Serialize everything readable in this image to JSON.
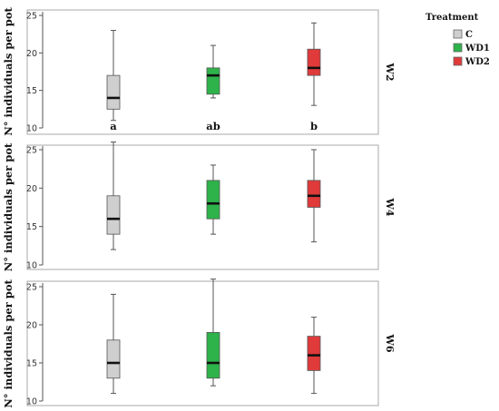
{
  "chart_data": {
    "type": "boxplot",
    "y_axis_label": "N° individuals per pot",
    "legend": {
      "title": "Treatment",
      "items": [
        {
          "label": "C",
          "color": "#cfcfcf"
        },
        {
          "label": "WD1",
          "color": "#2db34a"
        },
        {
          "label": "WD2",
          "color": "#e03a3a"
        }
      ]
    },
    "categories": [
      "C",
      "WD1",
      "WD2"
    ],
    "colors": [
      "#cfcfcf",
      "#2db34a",
      "#e03a3a"
    ],
    "panels": [
      {
        "label": "W2",
        "ylim": [
          10,
          25
        ],
        "yticks": [
          10,
          15,
          20,
          25
        ],
        "boxes": [
          {
            "min": 11,
            "q1": 12.5,
            "median": 14,
            "q3": 17,
            "max": 23
          },
          {
            "min": 14,
            "q1": 14.5,
            "median": 17,
            "q3": 18,
            "max": 21
          },
          {
            "min": 13,
            "q1": 17,
            "median": 18,
            "q3": 20.5,
            "max": 24
          }
        ],
        "letters": [
          "a",
          "ab",
          "b"
        ]
      },
      {
        "label": "W4",
        "ylim": [
          10,
          25
        ],
        "yticks": [
          10,
          15,
          20,
          25
        ],
        "boxes": [
          {
            "min": 12,
            "q1": 14,
            "median": 16,
            "q3": 19,
            "max": 26
          },
          {
            "min": 14,
            "q1": 16,
            "median": 18,
            "q3": 21,
            "max": 23
          },
          {
            "min": 13,
            "q1": 17.5,
            "median": 19,
            "q3": 21,
            "max": 25
          }
        ],
        "letters": []
      },
      {
        "label": "W6",
        "ylim": [
          10,
          25
        ],
        "yticks": [
          10,
          15,
          20,
          25
        ],
        "boxes": [
          {
            "min": 11,
            "q1": 13,
            "median": 15,
            "q3": 18,
            "max": 24
          },
          {
            "min": 12,
            "q1": 13,
            "median": 15,
            "q3": 19,
            "max": 26
          },
          {
            "min": 11,
            "q1": 14,
            "median": 16,
            "q3": 18.5,
            "max": 21
          }
        ],
        "letters": []
      }
    ]
  }
}
